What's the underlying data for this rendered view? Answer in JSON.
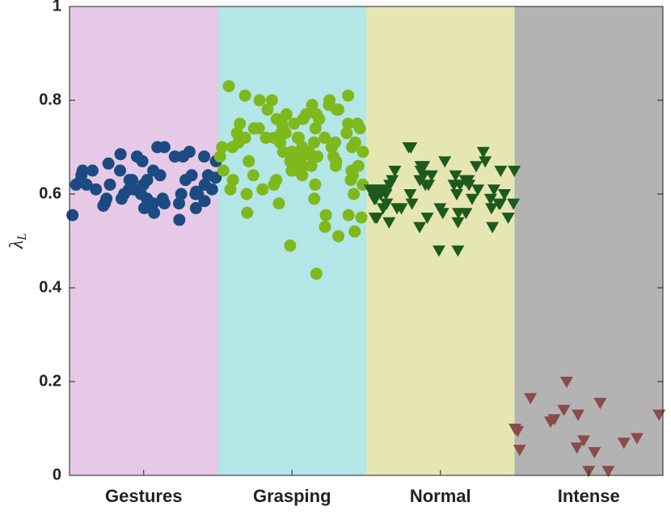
{
  "chart_data": {
    "type": "strip",
    "ylabel": {
      "symbol": "λ",
      "subscript": "L"
    },
    "categories": [
      "Gestures",
      "Grasping",
      "Normal",
      "Intense"
    ],
    "band_colors": [
      "#e6c9e6",
      "#b3e6e6",
      "#e6e6b3",
      "#b3b3b3"
    ],
    "ylim": [
      0,
      1
    ],
    "yticks": [
      0,
      0.2,
      0.4,
      0.6,
      0.8,
      1
    ],
    "series": [
      {
        "color": "#1b4b82",
        "marker": "circle",
        "values": [
          0.545,
          0.65,
          0.68,
          0.62,
          0.64,
          0.6,
          0.57,
          0.63,
          0.59,
          0.555,
          0.7,
          0.64,
          0.61,
          0.6,
          0.65,
          0.63,
          0.58,
          0.67,
          0.68,
          0.6,
          0.57,
          0.62,
          0.59,
          0.64,
          0.575,
          0.68,
          0.65,
          0.62,
          0.61,
          0.685,
          0.58,
          0.6,
          0.63,
          0.56,
          0.62,
          0.7,
          0.61,
          0.59,
          0.665,
          0.63,
          0.605,
          0.58,
          0.64,
          0.62,
          0.69,
          0.58,
          0.65,
          0.61,
          0.635,
          0.68,
          0.6,
          0.59,
          0.67,
          0.63,
          0.585
        ]
      },
      {
        "color": "#7fb81c",
        "marker": "circle",
        "values": [
          0.83,
          0.8,
          0.78,
          0.75,
          0.72,
          0.7,
          0.68,
          0.66,
          0.64,
          0.62,
          0.6,
          0.51,
          0.56,
          0.79,
          0.77,
          0.74,
          0.73,
          0.71,
          0.69,
          0.67,
          0.65,
          0.63,
          0.61,
          0.58,
          0.81,
          0.76,
          0.75,
          0.72,
          0.7,
          0.68,
          0.66,
          0.65,
          0.63,
          0.6,
          0.555,
          0.53,
          0.78,
          0.77,
          0.74,
          0.73,
          0.71,
          0.7,
          0.69,
          0.67,
          0.66,
          0.64,
          0.62,
          0.59,
          0.8,
          0.79,
          0.76,
          0.75,
          0.73,
          0.72,
          0.71,
          0.7,
          0.68,
          0.67,
          0.65,
          0.63,
          0.555,
          0.49,
          0.8,
          0.78,
          0.76,
          0.75,
          0.74,
          0.72,
          0.71,
          0.69,
          0.68,
          0.66,
          0.64,
          0.61,
          0.52,
          0.43,
          0.81,
          0.77,
          0.75,
          0.74,
          0.73,
          0.72,
          0.7,
          0.69,
          0.67,
          0.65,
          0.62,
          0.55,
          0.72,
          0.7,
          0.68,
          0.71,
          0.74,
          0.69
        ]
      },
      {
        "color": "#1d5a1d",
        "marker": "triangle-down",
        "values": [
          0.62,
          0.6,
          0.58,
          0.48,
          0.65,
          0.63,
          0.61,
          0.57,
          0.55,
          0.7,
          0.66,
          0.62,
          0.6,
          0.59,
          0.57,
          0.48,
          0.64,
          0.62,
          0.61,
          0.58,
          0.56,
          0.69,
          0.65,
          0.63,
          0.6,
          0.58,
          0.55,
          0.67,
          0.64,
          0.61,
          0.59,
          0.57,
          0.54,
          0.66,
          0.62,
          0.6,
          0.58,
          0.56,
          0.53,
          0.65,
          0.63,
          0.61,
          0.59,
          0.57,
          0.55,
          0.7,
          0.66,
          0.62,
          0.6,
          0.58,
          0.56,
          0.64,
          0.62,
          0.61,
          0.59,
          0.57,
          0.54,
          0.67,
          0.65,
          0.63,
          0.6,
          0.58,
          0.55,
          0.53
        ]
      },
      {
        "color": "#8a4b4b",
        "marker": "triangle-down",
        "values": [
          0.08,
          0.05,
          0.055,
          0.165,
          0.12,
          0.13,
          0.13,
          0.1,
          0.01,
          0.155,
          0.07,
          0.01,
          0.095,
          0.06,
          0.2,
          0.115,
          0.075,
          0.14
        ]
      }
    ]
  }
}
